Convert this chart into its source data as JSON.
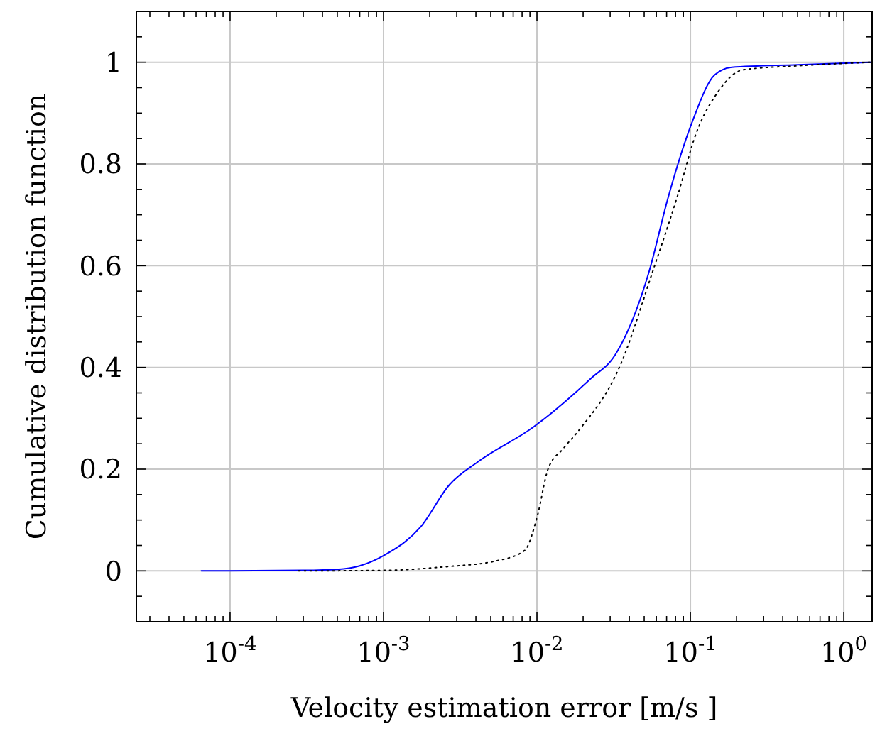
{
  "chart_data": {
    "type": "line",
    "xlabel": "Velocity estimation error [m/s ]",
    "ylabel": "Cumulative distribution function",
    "log": "x",
    "grid": true,
    "xlim": [
      2.45e-05,
      1.53
    ],
    "ylim": [
      -0.1,
      1.1
    ],
    "xticks": [
      {
        "value": 0.0001,
        "label": "10$^{-4}$"
      },
      {
        "value": 0.001,
        "label": "10$^{-3}$"
      },
      {
        "value": 0.01,
        "label": "10$^{-2}$"
      },
      {
        "value": 0.1,
        "label": "10$^{-1}$"
      },
      {
        "value": 1,
        "label": "10$^{0}$"
      },
      {
        "value": 3e-05,
        "label": null
      },
      {
        "value": 4e-05,
        "label": null
      },
      {
        "value": 5e-05,
        "label": null
      },
      {
        "value": 6e-05,
        "label": null
      },
      {
        "value": 7e-05,
        "label": null
      },
      {
        "value": 8e-05,
        "label": null
      },
      {
        "value": 9e-05,
        "label": null
      },
      {
        "value": 0.0002,
        "label": null
      },
      {
        "value": 0.0003,
        "label": null
      },
      {
        "value": 0.0004,
        "label": null
      },
      {
        "value": 0.0005,
        "label": null
      },
      {
        "value": 0.0006,
        "label": null
      },
      {
        "value": 0.0007,
        "label": null
      },
      {
        "value": 0.0008,
        "label": null
      },
      {
        "value": 0.0009,
        "label": null
      },
      {
        "value": 0.002,
        "label": null
      },
      {
        "value": 0.003,
        "label": null
      },
      {
        "value": 0.004,
        "label": null
      },
      {
        "value": 0.005,
        "label": null
      },
      {
        "value": 0.006,
        "label": null
      },
      {
        "value": 0.007,
        "label": null
      },
      {
        "value": 0.008,
        "label": null
      },
      {
        "value": 0.009,
        "label": null
      },
      {
        "value": 0.02,
        "label": null
      },
      {
        "value": 0.03,
        "label": null
      },
      {
        "value": 0.04,
        "label": null
      },
      {
        "value": 0.05,
        "label": null
      },
      {
        "value": 0.06,
        "label": null
      },
      {
        "value": 0.07,
        "label": null
      },
      {
        "value": 0.08,
        "label": null
      },
      {
        "value": 0.09,
        "label": null
      },
      {
        "value": 0.2,
        "label": null
      },
      {
        "value": 0.3,
        "label": null
      },
      {
        "value": 0.4,
        "label": null
      },
      {
        "value": 0.5,
        "label": null
      },
      {
        "value": 0.6,
        "label": null
      },
      {
        "value": 0.7,
        "label": null
      },
      {
        "value": 0.8,
        "label": null
      },
      {
        "value": 0.9,
        "label": null
      }
    ],
    "yticks": [
      0,
      0.2,
      0.4,
      0.6,
      0.8,
      1,
      {
        "value": -0.05,
        "label": null
      },
      {
        "value": 0.05,
        "label": null
      },
      {
        "value": 0.1,
        "label": null
      },
      {
        "value": 0.15,
        "label": null
      },
      {
        "value": 0.25,
        "label": null
      },
      {
        "value": 0.3,
        "label": null
      },
      {
        "value": 0.35,
        "label": null
      },
      {
        "value": 0.45,
        "label": null
      },
      {
        "value": 0.5,
        "label": null
      },
      {
        "value": 0.55,
        "label": null
      },
      {
        "value": 0.65,
        "label": null
      },
      {
        "value": 0.7,
        "label": null
      },
      {
        "value": 0.75,
        "label": null
      },
      {
        "value": 0.85,
        "label": null
      },
      {
        "value": 0.9,
        "label": null
      },
      {
        "value": 0.95,
        "label": null
      },
      {
        "value": 1.05,
        "label": null
      }
    ],
    "series": [
      {
        "color": "#0000ff",
        "line_style": "solid",
        "x": [
          6.5e-05,
          0.0001,
          0.0003,
          0.0005,
          0.0007,
          0.001,
          0.00174,
          0.0027,
          0.0041,
          0.0095,
          0.0224,
          0.0324,
          0.054,
          0.071,
          0.102,
          0.144,
          0.186,
          0.5,
          1.5
        ],
        "values": [
          0,
          0,
          0.001,
          0.003,
          0.01,
          0.03,
          0.086,
          0.17,
          0.214,
          0.283,
          0.378,
          0.425,
          0.59,
          0.73,
          0.88,
          0.975,
          0.99,
          0.995,
          1
        ]
      },
      {
        "color": "#000000",
        "line_style": "dotted",
        "x": [
          0.00028,
          0.001,
          0.0025,
          0.0055,
          0.0083,
          0.0101,
          0.0118,
          0.0148,
          0.0186,
          0.035,
          0.057,
          0.083,
          0.109,
          0.15,
          0.22,
          0.5,
          1.5
        ],
        "values": [
          0,
          0.001,
          0.008,
          0.02,
          0.04,
          0.11,
          0.2,
          0.24,
          0.275,
          0.405,
          0.59,
          0.74,
          0.86,
          0.94,
          0.985,
          0.993,
          1
        ]
      }
    ]
  }
}
